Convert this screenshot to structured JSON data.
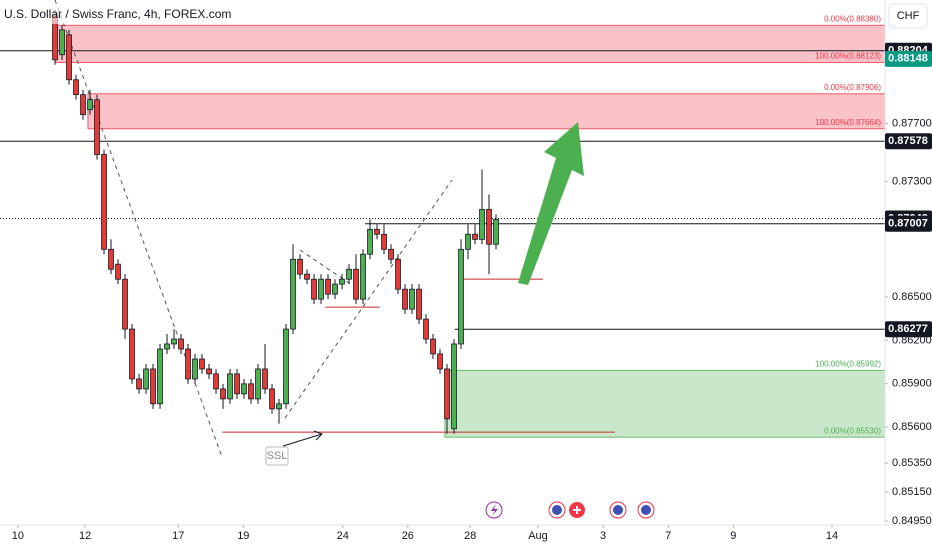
{
  "chart_data": {
    "type": "candlestick",
    "title": "U.S. Dollar / Swiss Franc, 4h, FOREX.com",
    "currency": "CHF",
    "up_color": "#4caf50",
    "down_color": "#e53935",
    "ylim": [
      0.8495,
      0.88555
    ],
    "yticks": [
      {
        "value": 0.877,
        "label": "0.87700"
      },
      {
        "value": 0.873,
        "label": "0.87300"
      },
      {
        "value": 0.865,
        "label": "0.86500"
      },
      {
        "value": 0.862,
        "label": "0.86200"
      },
      {
        "value": 0.859,
        "label": "0.85900"
      },
      {
        "value": 0.856,
        "label": "0.85600"
      },
      {
        "value": 0.8535,
        "label": "0.85350"
      },
      {
        "value": 0.8515,
        "label": "0.85150"
      },
      {
        "value": 0.8495,
        "label": "0.84950"
      }
    ],
    "xlim": [
      -7.86,
      118.57
    ],
    "xticks": [
      {
        "value": -5.3,
        "label": "10"
      },
      {
        "value": 4.3,
        "label": "12"
      },
      {
        "value": 17.6,
        "label": "17"
      },
      {
        "value": 26.9,
        "label": "19"
      },
      {
        "value": 41.1,
        "label": "24"
      },
      {
        "value": 50.4,
        "label": "26"
      },
      {
        "value": 59.3,
        "label": "28"
      },
      {
        "value": 69,
        "label": "Aug"
      },
      {
        "value": 78.3,
        "label": "3"
      },
      {
        "value": 87.6,
        "label": "7"
      },
      {
        "value": 96.9,
        "label": "9"
      },
      {
        "value": 111,
        "label": "14"
      }
    ],
    "candles": [
      [
        0.88452,
        0.88486,
        0.88107,
        0.88141
      ],
      [
        0.88176,
        0.88383,
        0.88141,
        0.88348
      ],
      [
        0.88314,
        0.88348,
        0.87969,
        0.88003
      ],
      [
        0.88003,
        0.88038,
        0.87865,
        0.879
      ],
      [
        0.879,
        0.87934,
        0.87727,
        0.87762
      ],
      [
        0.87796,
        0.87934,
        0.87762,
        0.87865
      ],
      [
        0.87865,
        0.879,
        0.87451,
        0.87486
      ],
      [
        0.87486,
        0.8752,
        0.86796,
        0.8683
      ],
      [
        0.8683,
        0.86899,
        0.86658,
        0.86692
      ],
      [
        0.86727,
        0.86761,
        0.86589,
        0.86623
      ],
      [
        0.86623,
        0.86658,
        0.86209,
        0.86278
      ],
      [
        0.86278,
        0.86313,
        0.85899,
        0.85933
      ],
      [
        0.85933,
        0.85968,
        0.8583,
        0.85864
      ],
      [
        0.85864,
        0.86037,
        0.8583,
        0.86002
      ],
      [
        0.86002,
        0.86037,
        0.85726,
        0.85761
      ],
      [
        0.85761,
        0.86175,
        0.85726,
        0.8614
      ],
      [
        0.8614,
        0.86244,
        0.86106,
        0.86175
      ],
      [
        0.86175,
        0.86278,
        0.8614,
        0.86209
      ],
      [
        0.86209,
        0.86244,
        0.86106,
        0.8614
      ],
      [
        0.8614,
        0.86175,
        0.85899,
        0.85933
      ],
      [
        0.85933,
        0.86106,
        0.85899,
        0.86071
      ],
      [
        0.86071,
        0.86106,
        0.85968,
        0.86002
      ],
      [
        0.86002,
        0.86037,
        0.85933,
        0.85968
      ],
      [
        0.85968,
        0.86002,
        0.8583,
        0.85864
      ],
      [
        0.85864,
        0.85899,
        0.85726,
        0.85795
      ],
      [
        0.85795,
        0.86002,
        0.85761,
        0.85968
      ],
      [
        0.85968,
        0.86002,
        0.85795,
        0.8583
      ],
      [
        0.8583,
        0.85933,
        0.85795,
        0.85899
      ],
      [
        0.85899,
        0.85933,
        0.85761,
        0.85795
      ],
      [
        0.85795,
        0.86037,
        0.85761,
        0.86002
      ],
      [
        0.86002,
        0.86175,
        0.8583,
        0.85864
      ],
      [
        0.85864,
        0.85899,
        0.85692,
        0.85726
      ],
      [
        0.85726,
        0.85795,
        0.85623,
        0.85761
      ],
      [
        0.85761,
        0.86313,
        0.85726,
        0.86278
      ],
      [
        0.86278,
        0.86865,
        0.86244,
        0.86761
      ],
      [
        0.86761,
        0.86796,
        0.86623,
        0.86658
      ],
      [
        0.86658,
        0.86692,
        0.86589,
        0.86623
      ],
      [
        0.86623,
        0.86658,
        0.86451,
        0.86485
      ],
      [
        0.86485,
        0.86658,
        0.86451,
        0.86623
      ],
      [
        0.86623,
        0.86658,
        0.86485,
        0.8652
      ],
      [
        0.8652,
        0.86623,
        0.86485,
        0.86589
      ],
      [
        0.86589,
        0.86658,
        0.86554,
        0.86623
      ],
      [
        0.86623,
        0.86727,
        0.86589,
        0.86692
      ],
      [
        0.86692,
        0.86796,
        0.86451,
        0.86485
      ],
      [
        0.86485,
        0.8683,
        0.86451,
        0.86796
      ],
      [
        0.86796,
        0.87037,
        0.86761,
        0.86968
      ],
      [
        0.86968,
        0.87003,
        0.86899,
        0.86934
      ],
      [
        0.86934,
        0.87003,
        0.86796,
        0.8683
      ],
      [
        0.8683,
        0.86865,
        0.86727,
        0.86761
      ],
      [
        0.86761,
        0.86796,
        0.8652,
        0.86554
      ],
      [
        0.86554,
        0.86589,
        0.86382,
        0.86416
      ],
      [
        0.86416,
        0.86589,
        0.86382,
        0.86554
      ],
      [
        0.86554,
        0.86589,
        0.86313,
        0.86347
      ],
      [
        0.86347,
        0.86382,
        0.86175,
        0.86209
      ],
      [
        0.86209,
        0.86244,
        0.86071,
        0.86106
      ],
      [
        0.86106,
        0.8614,
        0.85968,
        0.86002
      ],
      [
        0.86002,
        0.86037,
        0.85554,
        0.85657
      ],
      [
        0.85588,
        0.86209,
        0.85554,
        0.86175
      ],
      [
        0.86175,
        0.86899,
        0.8614,
        0.8683
      ],
      [
        0.8683,
        0.87003,
        0.86761,
        0.86934
      ],
      [
        0.86934,
        0.87003,
        0.86865,
        0.86899
      ],
      [
        0.86899,
        0.87382,
        0.86865,
        0.87106
      ],
      [
        0.87106,
        0.8721,
        0.86658,
        0.86865
      ],
      [
        0.86865,
        0.87072,
        0.8683,
        0.87037
      ]
    ],
    "zones": [
      {
        "top": 0.8838,
        "bottom": 0.88123,
        "from": 0,
        "top_label": "0.00%(0.88380)",
        "bottom_label": "100.00%(0.88123)",
        "color": "#f23645"
      },
      {
        "top": 0.87906,
        "bottom": 0.87664,
        "from": 4.7,
        "top_label": "0.00%(0.87906)",
        "bottom_label": "100.00%(0.87664)",
        "color": "#f23645"
      },
      {
        "top": 0.85992,
        "bottom": 0.8553,
        "from": 55.7,
        "top_label": "100.00%(0.85992)",
        "bottom_label": "0.00%(0.85530)",
        "color": "#4caf50"
      }
    ],
    "levels": [
      {
        "value": 0.88204,
        "color": "#131722",
        "style": "solid",
        "from": -7.86
      },
      {
        "value": 0.88148,
        "color": "#089981",
        "style": "none",
        "from": -7.86
      },
      {
        "value": 0.87578,
        "color": "#131722",
        "style": "solid",
        "from": -7.86
      },
      {
        "value": 0.87043,
        "color": "#131722",
        "style": "dotted",
        "from": -7.86
      },
      {
        "value": 0.87007,
        "color": "#131722",
        "style": "solid",
        "from": 44.3
      },
      {
        "value": 0.86277,
        "color": "#131722",
        "style": "solid",
        "from": 57.1
      }
    ],
    "marked_lows": [
      {
        "value": 0.86624,
        "from": 57.9,
        "to": 69.7
      },
      {
        "value": 0.8643,
        "from": 38.6,
        "to": 46.4
      },
      {
        "value": 0.85565,
        "from": 23.9,
        "to": 80
      }
    ],
    "annotation": "SSL"
  }
}
